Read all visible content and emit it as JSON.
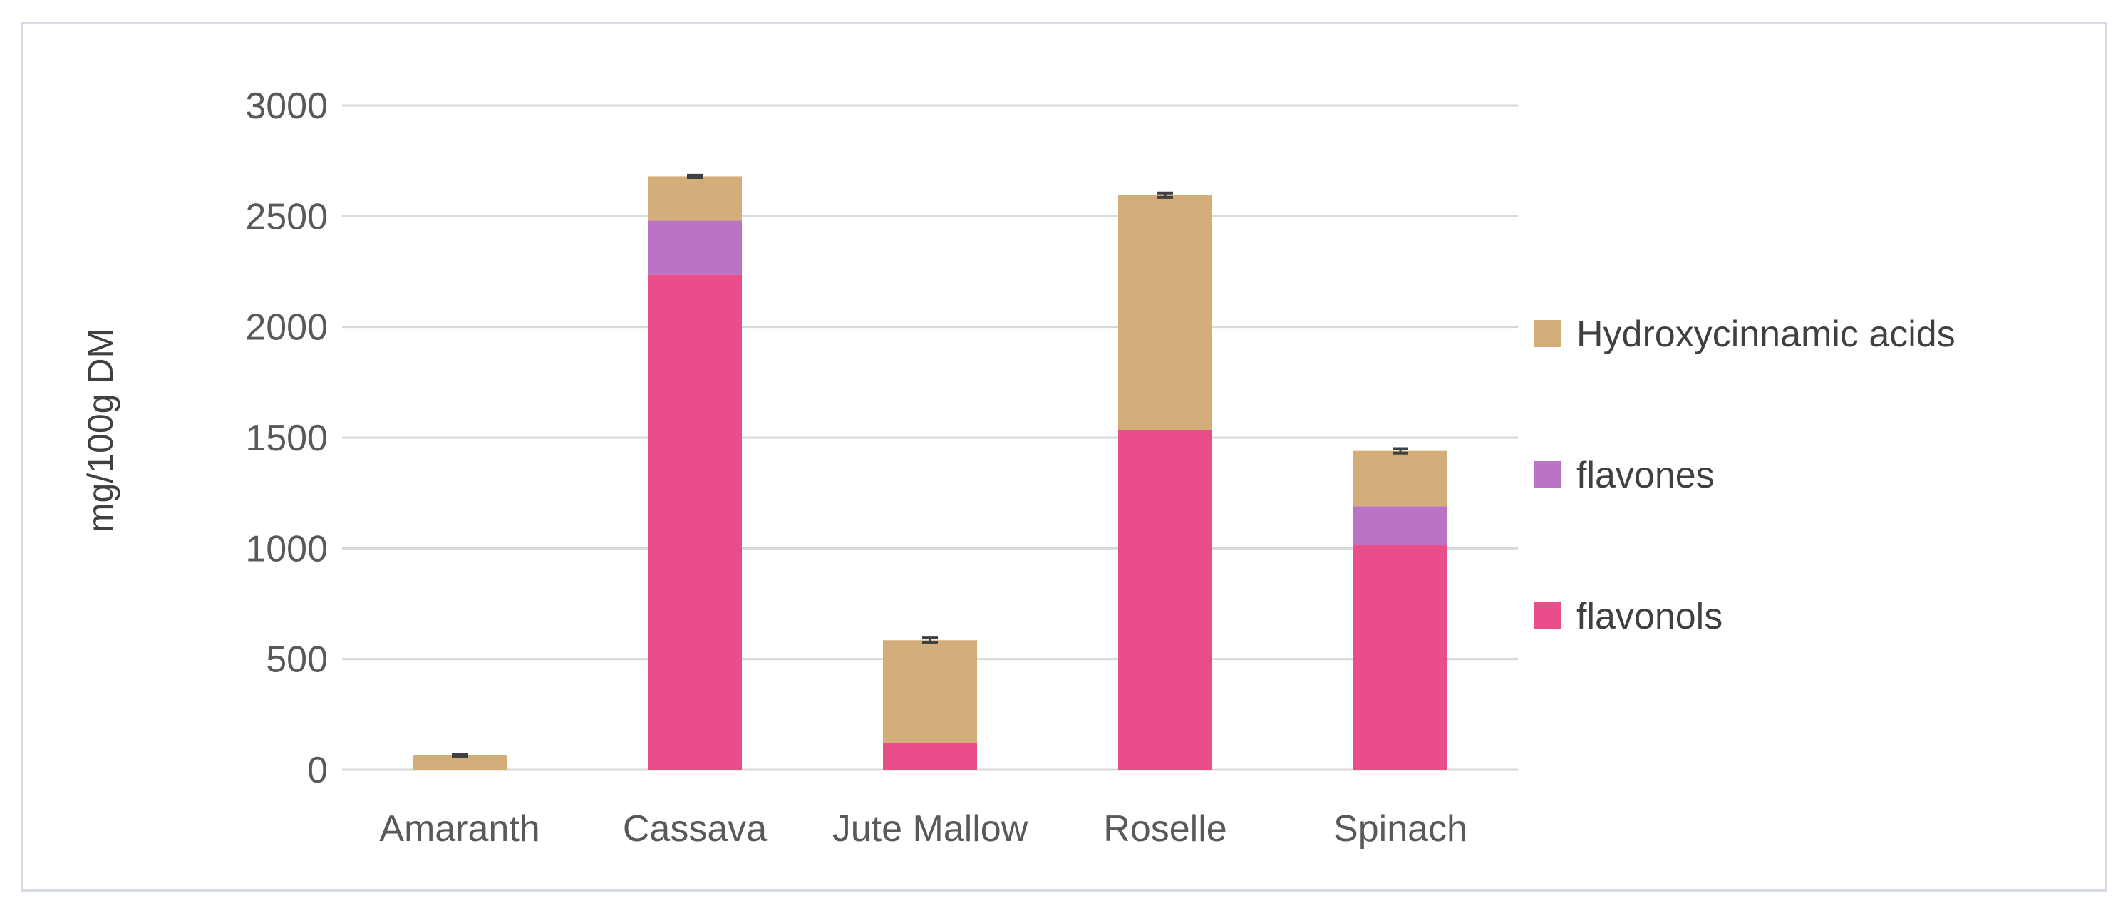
{
  "chart_data": {
    "type": "bar",
    "stacked": true,
    "title": "",
    "xlabel": "",
    "ylabel": "mg/100g DM",
    "ylim": [
      0,
      3000
    ],
    "yticks": [
      0,
      500,
      1000,
      1500,
      2000,
      2500,
      3000
    ],
    "grid": true,
    "legend_position": "right",
    "categories": [
      "Amaranth",
      "Cassava",
      "Jute Mallow",
      "Roselle",
      "Spinach"
    ],
    "series": [
      {
        "name": "flavonols",
        "color": "#e94e8a",
        "values": [
          0,
          2235,
          120,
          1535,
          1015
        ]
      },
      {
        "name": "flavones",
        "color": "#bb74c5",
        "values": [
          0,
          245,
          0,
          0,
          175
        ]
      },
      {
        "name": "Hydroxycinnamic acids",
        "color": "#d4ae7a",
        "values": [
          65,
          200,
          465,
          1060,
          250
        ]
      }
    ],
    "error_bars": [
      5,
      5,
      10,
      10,
      10
    ]
  }
}
